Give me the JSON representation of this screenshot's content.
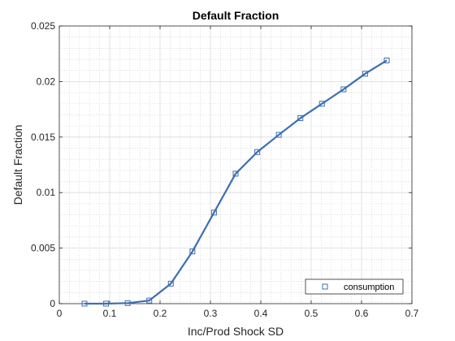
{
  "chart_data": {
    "type": "line",
    "title": "Default Fraction",
    "xlabel": "Inc/Prod Shock SD",
    "ylabel": "Default Fraction",
    "xlim": [
      0,
      0.7
    ],
    "ylim": [
      0,
      0.025
    ],
    "x_ticks": [
      0,
      0.1,
      0.2,
      0.3,
      0.4,
      0.5,
      0.6,
      0.7
    ],
    "x_tick_labels": [
      "0",
      "0.1",
      "0.2",
      "0.3",
      "0.4",
      "0.5",
      "0.6",
      "0.7"
    ],
    "y_ticks": [
      0,
      0.005,
      0.01,
      0.015,
      0.02,
      0.025
    ],
    "y_tick_labels": [
      "0",
      "0.005",
      "0.01",
      "0.015",
      "0.02",
      "0.025"
    ],
    "grid": "major and minor (dotted)",
    "legend_position": "bottom-right",
    "series": [
      {
        "name": "consumption",
        "color": "#3c6fb0",
        "marker": "square",
        "x": [
          0.05,
          0.0929,
          0.1357,
          0.1786,
          0.2214,
          0.2643,
          0.3071,
          0.35,
          0.3929,
          0.4357,
          0.4786,
          0.5214,
          0.5643,
          0.6071,
          0.65
        ],
        "y": [
          0.0,
          0.0,
          5e-05,
          0.00028,
          0.0018,
          0.0047,
          0.0082,
          0.0117,
          0.01365,
          0.0152,
          0.0167,
          0.018,
          0.0193,
          0.0207,
          0.0219
        ]
      }
    ]
  }
}
